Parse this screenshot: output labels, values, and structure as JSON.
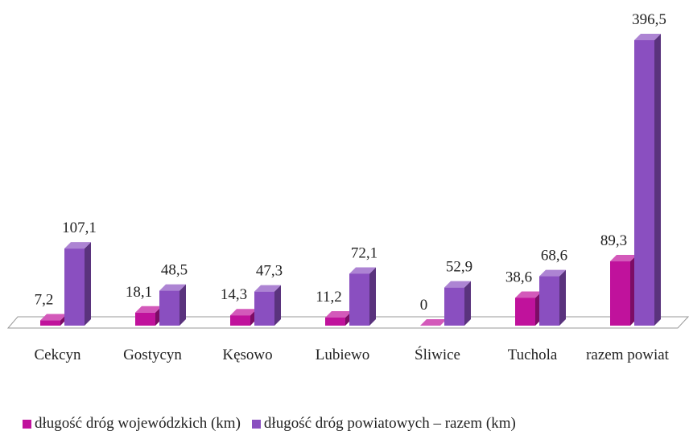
{
  "chart_data": {
    "type": "bar3d",
    "categories": [
      "Cekcyn",
      "Gostycyn",
      "Kęsowo",
      "Lubiewo",
      "Śliwice",
      "Tuchola",
      "razem powiat"
    ],
    "series": [
      {
        "name": "długość dróg wojewódzkich (km)",
        "color": "#c0129c",
        "values": [
          7.2,
          18.1,
          14.3,
          11.2,
          0,
          38.6,
          89.3
        ],
        "value_labels": [
          "7,2",
          "18,1",
          "14,3",
          "11,2",
          "0",
          "38,6",
          "89,3"
        ]
      },
      {
        "name": "długość dróg powiatowych – razem (km)",
        "color": "#8a4fc0",
        "values": [
          107.1,
          48.5,
          47.3,
          72.1,
          52.9,
          68.6,
          396.5
        ],
        "value_labels": [
          "107,1",
          "48,5",
          "47,3",
          "72,1",
          "52,9",
          "68,6",
          "396,5"
        ]
      }
    ]
  }
}
